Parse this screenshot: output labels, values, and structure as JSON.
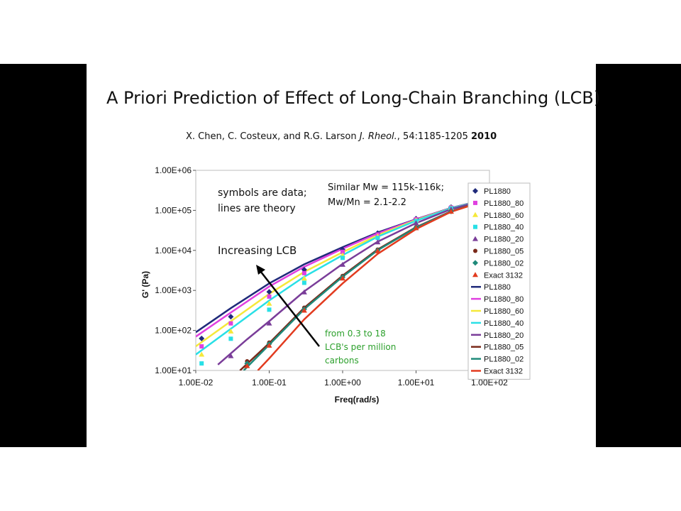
{
  "slide": {
    "title": "A Priori Prediction of Effect of Long-Chain Branching  (LCB)",
    "citation_authors": "X. Chen, C. Costeux, and R.G. Larson ",
    "citation_journal": "J. Rheol.",
    "citation_ref": ", 54:1185-1205 ",
    "citation_year": "2010"
  },
  "chart_data": {
    "type": "scatter",
    "xlabel": "Freq(rad/s)",
    "ylabel": "G' (Pa)",
    "xscale": "log",
    "yscale": "log",
    "xlim": [
      0.01,
      100
    ],
    "ylim": [
      10,
      1000000
    ],
    "xticks": [
      "1.00E-02",
      "1.00E-01",
      "1.00E+00",
      "1.00E+01",
      "1.00E+02"
    ],
    "yticks": [
      "1.00E+01",
      "1.00E+02",
      "1.00E+03",
      "1.00E+04",
      "1.00E+05",
      "1.00E+06"
    ],
    "legend_position": "right",
    "annotations": {
      "note_line1": "symbols are data;",
      "note_line2": "lines are theory",
      "mw_line": "Similar Mw = 115k-116k;",
      "pdi_line": "Mw/Mn = 2.1-2.2",
      "arrow_label": "Increasing LCB",
      "lcb_line1": "from 0.3 to 18",
      "lcb_line2": "LCB's per million",
      "lcb_line3": "carbons",
      "lcb_color": "#2ca02c"
    },
    "data_series": [
      {
        "name": "PL1880",
        "marker": "diamond",
        "color": "#1f2a7a",
        "x": [
          0.012,
          0.03,
          0.1,
          0.3,
          1,
          3,
          10,
          30,
          80
        ],
        "y": [
          63,
          220,
          920,
          3300,
          10400,
          27000,
          62000,
          120000,
          180000
        ]
      },
      {
        "name": "PL1880_80",
        "marker": "square",
        "color": "#e040e0",
        "x": [
          0.012,
          0.03,
          0.1,
          0.3,
          1,
          3,
          10,
          30,
          80
        ],
        "y": [
          40,
          150,
          700,
          2700,
          9200,
          25000,
          60000,
          118000,
          180000
        ]
      },
      {
        "name": "PL1880_60",
        "marker": "triangle",
        "color": "#f5e83a",
        "x": [
          0.012,
          0.03,
          0.1,
          0.3,
          1,
          3,
          10,
          30,
          80
        ],
        "y": [
          25,
          95,
          470,
          2000,
          7600,
          22500,
          57000,
          115000,
          178000
        ]
      },
      {
        "name": "PL1880_40",
        "marker": "square",
        "color": "#29e0e6",
        "x": [
          0.012,
          0.03,
          0.1,
          0.3,
          1,
          3,
          10,
          30,
          80
        ],
        "y": [
          15,
          62,
          330,
          1550,
          6500,
          20500,
          54000,
          112000,
          176000
        ]
      },
      {
        "name": "PL1880_20",
        "marker": "triangle",
        "color": "#7a3d99",
        "x": [
          0.03,
          0.1,
          0.3,
          1,
          3,
          10,
          30,
          80
        ],
        "y": [
          23,
          150,
          900,
          4400,
          16000,
          48000,
          106000,
          172000
        ]
      },
      {
        "name": "PL1880_05",
        "marker": "circle",
        "color": "#7a2a1a",
        "x": [
          0.05,
          0.1,
          0.3,
          1,
          3,
          10,
          30,
          80
        ],
        "y": [
          17,
          50,
          370,
          2300,
          10500,
          38000,
          95000,
          165000
        ]
      },
      {
        "name": "PL1880_02",
        "marker": "diamond",
        "color": "#1f8a7a",
        "x": [
          0.05,
          0.1,
          0.3,
          1,
          3,
          10,
          30,
          80
        ],
        "y": [
          15,
          46,
          340,
          2150,
          10000,
          37000,
          94000,
          164000
        ]
      },
      {
        "name": "Exact 3132",
        "marker": "triangle",
        "color": "#e23b1f",
        "x": [
          0.05,
          0.1,
          0.3,
          1,
          3,
          10,
          30,
          80
        ],
        "y": [
          13,
          42,
          315,
          2000,
          9600,
          36000,
          93000,
          163000
        ]
      }
    ],
    "theory_series": [
      {
        "name": "PL1880",
        "color": "#1f2a7a",
        "x": [
          0.01,
          0.03,
          0.1,
          0.3,
          1,
          3,
          10,
          30,
          100
        ],
        "y": [
          90,
          360,
          1500,
          4500,
          12000,
          28000,
          60000,
          115000,
          200000
        ]
      },
      {
        "name": "PL1880_80",
        "color": "#e040e0",
        "x": [
          0.01,
          0.03,
          0.1,
          0.3,
          1,
          3,
          10,
          30,
          100
        ],
        "y": [
          70,
          280,
          1250,
          3900,
          11000,
          26500,
          59000,
          114000,
          200000
        ]
      },
      {
        "name": "PL1880_60",
        "color": "#f5e83a",
        "x": [
          0.01,
          0.03,
          0.1,
          0.3,
          1,
          3,
          10,
          30,
          100
        ],
        "y": [
          40,
          170,
          820,
          2900,
          9000,
          24000,
          57000,
          113000,
          198000
        ]
      },
      {
        "name": "PL1880_40",
        "color": "#29e0e6",
        "x": [
          0.01,
          0.03,
          0.1,
          0.3,
          1,
          3,
          10,
          30,
          100
        ],
        "y": [
          25,
          110,
          560,
          2200,
          7600,
          22000,
          55000,
          112000,
          197000
        ]
      },
      {
        "name": "PL1880_20",
        "color": "#7a3d99",
        "x": [
          0.02,
          0.05,
          0.1,
          0.3,
          1,
          3,
          10,
          30,
          100
        ],
        "y": [
          14,
          60,
          170,
          950,
          4600,
          16500,
          48000,
          107000,
          195000
        ]
      },
      {
        "name": "PL1880_05",
        "color": "#7a2a1a",
        "x": [
          0.04,
          0.1,
          0.3,
          1,
          3,
          10,
          30,
          100
        ],
        "y": [
          10,
          48,
          370,
          2350,
          10600,
          38000,
          95000,
          190000
        ]
      },
      {
        "name": "PL1880_02",
        "color": "#1f8a7a",
        "x": [
          0.045,
          0.1,
          0.3,
          1,
          3,
          10,
          30,
          100
        ],
        "y": [
          10,
          44,
          340,
          2200,
          10100,
          37000,
          94000,
          189000
        ]
      },
      {
        "name": "Exact 3132",
        "color": "#e23b1f",
        "x": [
          0.07,
          0.1,
          0.3,
          1,
          3,
          10,
          30,
          100
        ],
        "y": [
          10,
          20,
          190,
          1500,
          8200,
          34000,
          92000,
          188000
        ]
      }
    ]
  }
}
